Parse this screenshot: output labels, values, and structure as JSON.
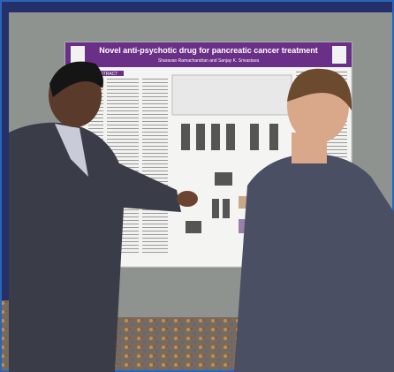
{
  "poster": {
    "title": "Novel anti-psychotic drug for pancreatic cancer treatment",
    "authors": "Sharavan Ramachandran and Sanjay K. Srivastava",
    "section": "ABSTRACT"
  }
}
